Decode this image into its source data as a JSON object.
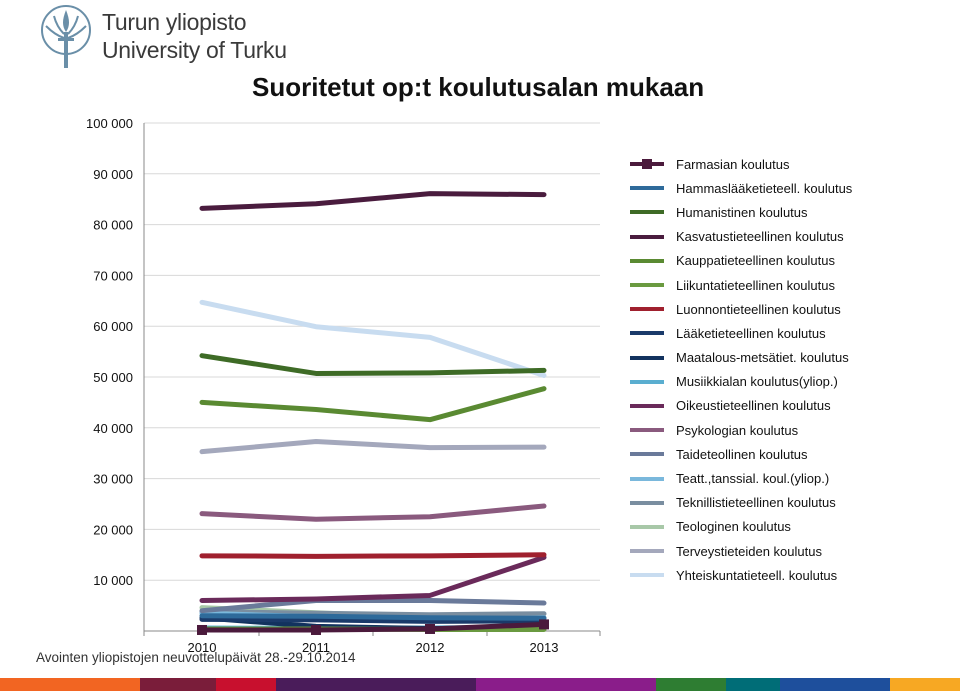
{
  "header": {
    "logo_line1": "Turun yliopisto",
    "logo_line2": "University of Turku"
  },
  "footer": {
    "text": "Avointen yliopistojen neuvottelupäivät 28.-29.10.2014"
  },
  "brand_bar_colors": [
    "#f26522",
    "#7a1d3a",
    "#c8102e",
    "#4a1c5a",
    "#8a1d8a",
    "#2e7d32",
    "#006d77",
    "#1e4f9c",
    "#f7a823"
  ],
  "chart_data": {
    "type": "line",
    "title": "Suoritetut op:t koulutusalan mukaan",
    "xlabel": "",
    "ylabel": "",
    "x": [
      "2010",
      "2011",
      "2012",
      "2013"
    ],
    "ylim": [
      0,
      100000
    ],
    "yticks": [
      0,
      10000,
      20000,
      30000,
      40000,
      50000,
      60000,
      70000,
      80000,
      90000,
      100000
    ],
    "ytick_labels": [
      "",
      "10 000",
      "20 000",
      "30 000",
      "40 000",
      "50 000",
      "60 000",
      "70 000",
      "80 000",
      "90 000",
      "100 000"
    ],
    "grid": true,
    "legend_position": "right",
    "series": [
      {
        "name": "Farmasian koulutus",
        "color": "#4b1a3c",
        "marker": "square",
        "values": [
          200,
          200,
          400,
          1300
        ]
      },
      {
        "name": "Hammaslääketieteell. koulutus",
        "color": "#2e6a9a",
        "values": [
          3000,
          2900,
          2600,
          2500
        ]
      },
      {
        "name": "Humanistinen koulutus",
        "color": "#3e6b26",
        "values": [
          54200,
          50700,
          50800,
          51300
        ]
      },
      {
        "name": "Kasvatustieteellinen koulutus",
        "color": "#4a1c3e",
        "values": [
          83200,
          84100,
          86100,
          85900
        ]
      },
      {
        "name": "Kauppatieteellinen koulutus",
        "color": "#5a8a32",
        "values": [
          45000,
          43600,
          41600,
          47700
        ]
      },
      {
        "name": "Liikuntatieteellinen koulutus",
        "color": "#6a9a40",
        "values": [
          400,
          400,
          300,
          300
        ]
      },
      {
        "name": "Luonnontieteellinen koulutus",
        "color": "#a0202e",
        "values": [
          14800,
          14700,
          14800,
          15000
        ]
      },
      {
        "name": "Lääketieteellinen koulutus",
        "color": "#1a3a6a",
        "values": [
          2300,
          2200,
          1900,
          2000
        ]
      },
      {
        "name": "Maatalous-metsätiet. koulutus",
        "color": "#12325e",
        "values": [
          2600,
          900,
          500,
          700
        ]
      },
      {
        "name": "Musiikkialan koulutus(yliop.)",
        "color": "#5aaed0",
        "values": [
          600,
          500,
          600,
          800
        ]
      },
      {
        "name": "Oikeustieteellinen koulutus",
        "color": "#6a2a5a",
        "values": [
          6000,
          6300,
          7000,
          14500
        ]
      },
      {
        "name": "Psykologian koulutus",
        "color": "#8a5a7e",
        "values": [
          23100,
          22000,
          22500,
          24600
        ]
      },
      {
        "name": "Taideteollinen koulutus",
        "color": "#6a7a9a",
        "values": [
          4000,
          6000,
          6000,
          5500
        ]
      },
      {
        "name": "Teatt.,tanssial. koul.(yliop.)",
        "color": "#7ab8dc",
        "values": [
          3500,
          2800,
          2000,
          2600
        ]
      },
      {
        "name": "Teknillistieteellinen koulutus",
        "color": "#7a8ea0",
        "values": [
          3800,
          3500,
          3200,
          3400
        ]
      },
      {
        "name": "Teologinen koulutus",
        "color": "#a8c8a8",
        "values": [
          4600,
          3600,
          2600,
          2600
        ]
      },
      {
        "name": "Terveystieteiden koulutus",
        "color": "#a4a8bc",
        "values": [
          35300,
          37300,
          36100,
          36200
        ]
      },
      {
        "name": "Yhteiskuntatieteell. koulutus",
        "color": "#c8dcf0",
        "values": [
          64700,
          59900,
          57800,
          50300
        ]
      }
    ]
  }
}
